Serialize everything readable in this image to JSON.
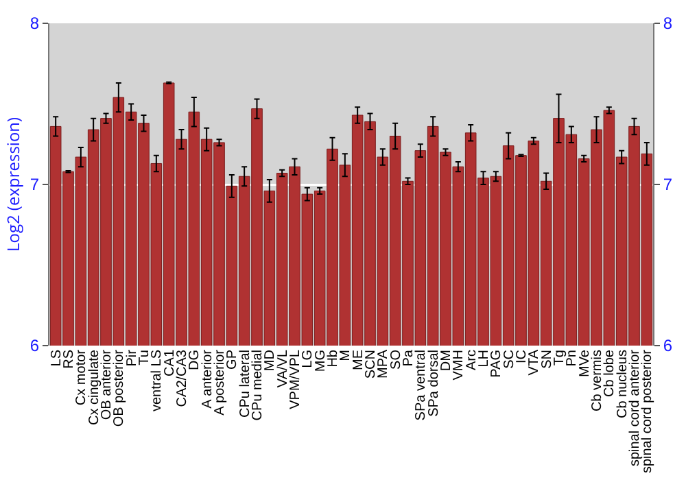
{
  "chart_data": {
    "type": "bar",
    "ylabel": "Log2 (expression)",
    "categories": [
      "LS",
      "RS",
      "Cx motor",
      "Cx cingulate",
      "OB anterior",
      "OB posterior",
      "Pir",
      "Tu",
      "ventral LS",
      "CA1",
      "CA2/CA3",
      "DG",
      "A anterior",
      "A posterior",
      "GP",
      "CPu lateral",
      "CPu medial",
      "MD",
      "VA/VL",
      "VPM/VPL",
      "LG",
      "MG",
      "Hb",
      "M",
      "ME",
      "SCN",
      "MPA",
      "SO",
      "Pa",
      "SPa ventral",
      "SPa dorsal",
      "DM",
      "VMH",
      "Arc",
      "LH",
      "PAG",
      "SC",
      "IC",
      "VTA",
      "SN",
      "Tg",
      "Pn",
      "MVe",
      "Cb vermis",
      "Cb lobe",
      "Cb nucleus",
      "spinal cord anterior",
      "spinal cord posterior"
    ],
    "values": [
      7.36,
      7.08,
      7.17,
      7.34,
      7.41,
      7.54,
      7.45,
      7.38,
      7.13,
      7.63,
      7.28,
      7.45,
      7.28,
      7.26,
      6.99,
      7.05,
      7.47,
      6.96,
      7.07,
      7.11,
      6.94,
      6.96,
      7.22,
      7.12,
      7.43,
      7.39,
      7.17,
      7.3,
      7.02,
      7.21,
      7.36,
      7.2,
      7.11,
      7.32,
      7.04,
      7.05,
      7.24,
      7.18,
      7.27,
      7.02,
      7.41,
      7.31,
      7.16,
      7.34,
      7.46,
      7.17,
      7.36,
      7.19
    ],
    "errors": [
      0.06,
      0.005,
      0.06,
      0.07,
      0.03,
      0.09,
      0.05,
      0.05,
      0.05,
      0.005,
      0.06,
      0.09,
      0.07,
      0.02,
      0.07,
      0.06,
      0.06,
      0.07,
      0.02,
      0.05,
      0.04,
      0.02,
      0.07,
      0.07,
      0.05,
      0.05,
      0.05,
      0.08,
      0.02,
      0.04,
      0.06,
      0.02,
      0.03,
      0.05,
      0.04,
      0.03,
      0.08,
      0.005,
      0.02,
      0.05,
      0.15,
      0.05,
      0.02,
      0.08,
      0.02,
      0.04,
      0.05,
      0.07
    ],
    "color": "#b03232",
    "ylim": [
      6,
      8
    ],
    "yticks": [
      6,
      7,
      8
    ],
    "y2lim": [
      6,
      8
    ],
    "y2ticks": [
      6,
      7,
      8
    ],
    "grid": "y"
  }
}
